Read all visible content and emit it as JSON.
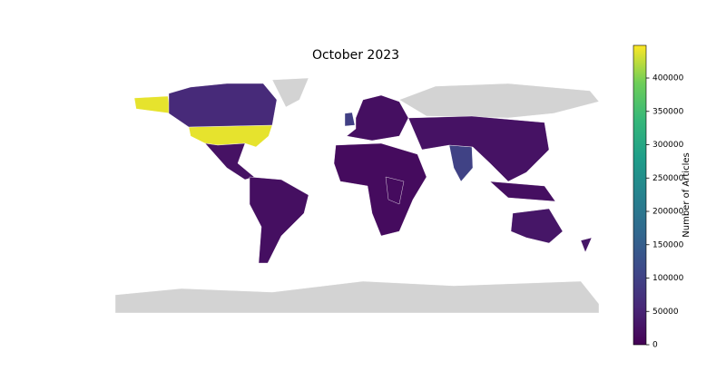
{
  "chart_data": {
    "type": "choropleth",
    "title": "October 2023",
    "colorbar_label": "Number of Articles",
    "colormap": "viridis",
    "missing_color": "#d3d3d3",
    "values": [
      440000,
      60000,
      95000,
      100000,
      25000,
      20000,
      20000,
      15000,
      25000,
      20000,
      30000
    ],
    "zlim": [
      0,
      449000
    ],
    "zticks": [
      0,
      50000,
      100000,
      150000,
      200000,
      250000,
      300000,
      350000,
      400000
    ]
  }
}
